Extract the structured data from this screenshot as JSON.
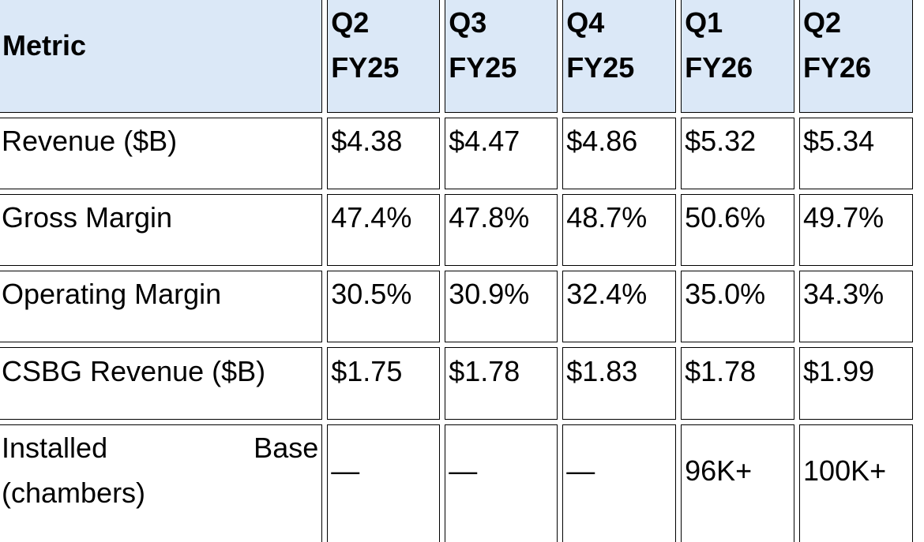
{
  "table": {
    "header": [
      "Metric",
      "Q2 FY25",
      "Q3 FY25",
      "Q4 FY25",
      "Q1 FY26",
      "Q2 FY26"
    ],
    "rows": [
      [
        "Revenue ($B)",
        "$4.38",
        "$4.47",
        "$4.86",
        "$5.32",
        "$5.34"
      ],
      [
        "Gross Margin",
        "47.4%",
        "47.8%",
        "48.7%",
        "50.6%",
        "49.7%"
      ],
      [
        "Operating Margin",
        "30.5%",
        "30.9%",
        "32.4%",
        "35.0%",
        "34.3%"
      ],
      [
        "CSBG Revenue ($B)",
        "$1.75",
        "$1.78",
        "$1.83",
        "$1.78",
        "$1.99"
      ],
      [
        "Installed Base (chambers)",
        "—",
        "—",
        "—",
        "96K+",
        "100K+"
      ]
    ]
  }
}
